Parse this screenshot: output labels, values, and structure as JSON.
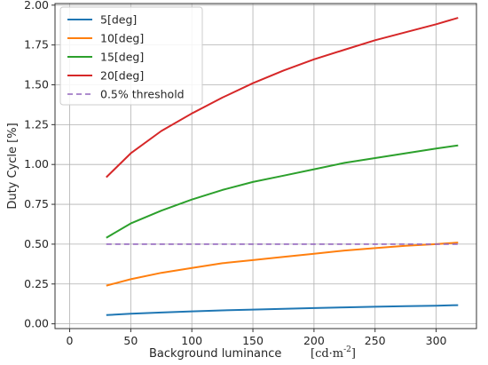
{
  "chart_data": {
    "type": "line",
    "title": "",
    "xlabel": "Background luminance",
    "xunit": "[cd·m",
    "xunit_exp": "-2",
    "xunit_close": "]",
    "ylabel": "Duty Cycle [%]",
    "xlim": [
      -12,
      333
    ],
    "ylim": [
      -0.03,
      2.01
    ],
    "xticks": [
      0,
      50,
      100,
      150,
      200,
      250,
      300
    ],
    "xtick_labels": [
      "0",
      "50",
      "100",
      "150",
      "200",
      "250",
      "300"
    ],
    "yticks": [
      0.0,
      0.25,
      0.5,
      0.75,
      1.0,
      1.25,
      1.5,
      1.75,
      2.0
    ],
    "ytick_labels": [
      "0.00",
      "0.25",
      "0.50",
      "0.75",
      "1.00",
      "1.25",
      "1.50",
      "1.75",
      "2.00"
    ],
    "grid": true,
    "legend_position": "top-left",
    "x": [
      30,
      50,
      75,
      100,
      125,
      150,
      175,
      200,
      225,
      250,
      275,
      300,
      318
    ],
    "series": [
      {
        "name": "5[deg]",
        "color": "#1f77b4",
        "style": "solid",
        "values": [
          0.055,
          0.063,
          0.071,
          0.078,
          0.084,
          0.089,
          0.094,
          0.099,
          0.103,
          0.107,
          0.111,
          0.114,
          0.117
        ]
      },
      {
        "name": "10[deg]",
        "color": "#ff7f0e",
        "style": "solid",
        "values": [
          0.24,
          0.28,
          0.32,
          0.35,
          0.38,
          0.4,
          0.42,
          0.44,
          0.46,
          0.475,
          0.49,
          0.5,
          0.51
        ]
      },
      {
        "name": "15[deg]",
        "color": "#2ca02c",
        "style": "solid",
        "values": [
          0.54,
          0.63,
          0.71,
          0.78,
          0.84,
          0.89,
          0.93,
          0.97,
          1.01,
          1.04,
          1.07,
          1.1,
          1.12
        ]
      },
      {
        "name": "20[deg]",
        "color": "#d62728",
        "style": "solid",
        "values": [
          0.92,
          1.07,
          1.21,
          1.32,
          1.42,
          1.51,
          1.59,
          1.66,
          1.72,
          1.78,
          1.83,
          1.88,
          1.92
        ]
      },
      {
        "name": "0.5% threshold",
        "color": "#9467bd",
        "style": "dashed",
        "values": [
          0.5,
          0.5,
          0.5,
          0.5,
          0.5,
          0.5,
          0.5,
          0.5,
          0.5,
          0.5,
          0.5,
          0.5,
          0.5
        ]
      }
    ]
  }
}
